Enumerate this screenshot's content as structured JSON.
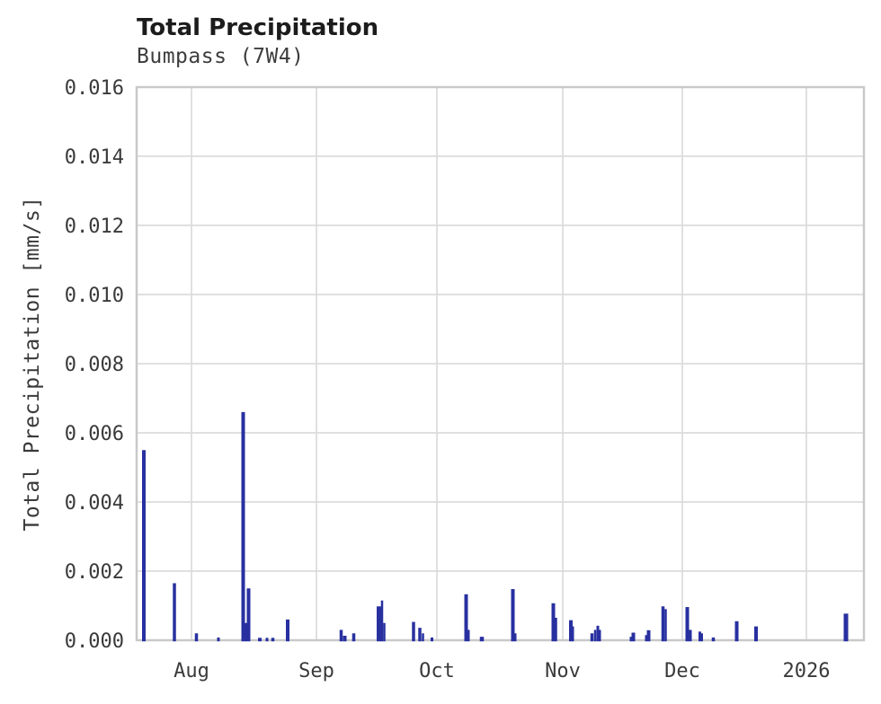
{
  "figure": {
    "title": "Total Precipitation",
    "subtitle": "Bumpass (7W4)"
  },
  "chart_data": {
    "type": "bar",
    "title": "Total Precipitation",
    "subtitle": "Bumpass (7W4)",
    "station": "Bumpass (7W4)",
    "xlabel": "",
    "ylabel": "Total Precipitation [mm/s]",
    "unit": "mm/s",
    "ylim": [
      0,
      0.016
    ],
    "y_tick_step": 0.002,
    "y_ticks": [
      "0.000",
      "0.002",
      "0.004",
      "0.006",
      "0.008",
      "0.010",
      "0.012",
      "0.014",
      "0.016"
    ],
    "x_ticks": [
      {
        "label": "Aug",
        "px": 213
      },
      {
        "label": "Sep",
        "px": 352
      },
      {
        "label": "Oct",
        "px": 486
      },
      {
        "label": "Nov",
        "px": 626
      },
      {
        "label": "Dec",
        "px": 759
      },
      {
        "label": "2026",
        "px": 897
      }
    ],
    "x_domain": [
      "2025-07-18",
      "2026-01-15"
    ],
    "grid": true,
    "legend": "none",
    "colors": {
      "bar": "#2830a0",
      "grid": "#dcdcdc",
      "spine": "#c9c9c9",
      "title": "#1c1c1c",
      "text": "#3a3a3a",
      "background": "#ffffff"
    },
    "points": [
      {
        "date": "Jul 20",
        "value": 0.0055,
        "px": 160,
        "w": 4
      },
      {
        "date": "Jul 27",
        "value": 0.00165,
        "px": 194,
        "w": 3.5
      },
      {
        "date": "Aug 2",
        "value": 0.0002,
        "px": 218.5,
        "w": 3.5
      },
      {
        "date": "Aug 7",
        "value": 8e-05,
        "px": 243,
        "w": 3
      },
      {
        "date": "Aug 13",
        "value": 0.0066,
        "px": 270.5,
        "w": 4
      },
      {
        "date": "Aug 14",
        "value": 0.0005,
        "px": 273.5,
        "w": 2.5
      },
      {
        "date": "Aug 15",
        "value": 0.0015,
        "px": 276.5,
        "w": 4
      },
      {
        "date": "Aug 18",
        "value": 7e-05,
        "px": 289,
        "w": 4
      },
      {
        "date": "Aug 19",
        "value": 7e-05,
        "px": 297,
        "w": 3
      },
      {
        "date": "Aug 21",
        "value": 7e-05,
        "px": 303.5,
        "w": 3.5
      },
      {
        "date": "Aug 25",
        "value": 0.0006,
        "px": 320,
        "w": 4
      },
      {
        "date": "Sep 7",
        "value": 0.0003,
        "px": 379.5,
        "w": 3.5
      },
      {
        "date": "Sep 8",
        "value": 0.00013,
        "px": 383.5,
        "w": 4
      },
      {
        "date": "Sep 10",
        "value": 0.0002,
        "px": 393.5,
        "w": 3.5
      },
      {
        "date": "Sep 16",
        "value": 0.00098,
        "px": 421.5,
        "w": 5
      },
      {
        "date": "Sep 17",
        "value": 0.00115,
        "px": 425,
        "w": 2.5
      },
      {
        "date": "Sep 17",
        "value": 0.0005,
        "px": 427.5,
        "w": 2.5
      },
      {
        "date": "Sep 25",
        "value": 0.00053,
        "px": 460,
        "w": 3.5
      },
      {
        "date": "Sep 26",
        "value": 0.00036,
        "px": 467,
        "w": 3.5
      },
      {
        "date": "Sep 27",
        "value": 0.0002,
        "px": 470.5,
        "w": 2.5
      },
      {
        "date": "Sep 29",
        "value": 8e-05,
        "px": 480.5,
        "w": 3
      },
      {
        "date": "Oct 8",
        "value": 0.00133,
        "px": 518.5,
        "w": 4
      },
      {
        "date": "Oct 9",
        "value": 0.0003,
        "px": 521.5,
        "w": 2
      },
      {
        "date": "Oct 12",
        "value": 0.0001,
        "px": 536,
        "w": 4.5
      },
      {
        "date": "Oct 19",
        "value": 0.00148,
        "px": 570.5,
        "w": 4
      },
      {
        "date": "Oct 20",
        "value": 0.0002,
        "px": 573.5,
        "w": 2
      },
      {
        "date": "Oct 29",
        "value": 0.00107,
        "px": 615.5,
        "w": 4
      },
      {
        "date": "Oct 30",
        "value": 0.00065,
        "px": 618.5,
        "w": 2.5
      },
      {
        "date": "Nov 3",
        "value": 0.00058,
        "px": 635,
        "w": 4
      },
      {
        "date": "Nov 4",
        "value": 0.0004,
        "px": 637.5,
        "w": 2
      },
      {
        "date": "Nov 8",
        "value": 0.0002,
        "px": 658.5,
        "w": 3.5
      },
      {
        "date": "Nov 9",
        "value": 0.0003,
        "px": 662,
        "w": 2.5
      },
      {
        "date": "Nov 9",
        "value": 0.00042,
        "px": 665,
        "w": 3
      },
      {
        "date": "Nov 10",
        "value": 0.0003,
        "px": 667.5,
        "w": 2
      },
      {
        "date": "Nov 17",
        "value": 0.0001,
        "px": 701.5,
        "w": 2
      },
      {
        "date": "Nov 18",
        "value": 0.00022,
        "px": 704.5,
        "w": 4
      },
      {
        "date": "Nov 21",
        "value": 0.00015,
        "px": 718.5,
        "w": 2
      },
      {
        "date": "Nov 22",
        "value": 0.00029,
        "px": 721.5,
        "w": 4
      },
      {
        "date": "Nov 25",
        "value": 0.00098,
        "px": 737.5,
        "w": 3.5
      },
      {
        "date": "Nov 26",
        "value": 0.0009,
        "px": 740.5,
        "w": 2.5
      },
      {
        "date": "Dec 2",
        "value": 0.00096,
        "px": 764.5,
        "w": 4
      },
      {
        "date": "Dec 3",
        "value": 0.0003,
        "px": 768,
        "w": 3
      },
      {
        "date": "Dec 5",
        "value": 0.00025,
        "px": 778.5,
        "w": 3
      },
      {
        "date": "Dec 5",
        "value": 0.0002,
        "px": 781,
        "w": 2
      },
      {
        "date": "Dec 8",
        "value": 8e-05,
        "px": 793.5,
        "w": 3.5
      },
      {
        "date": "Dec 14",
        "value": 0.00055,
        "px": 819.5,
        "w": 4
      },
      {
        "date": "Dec 19",
        "value": 0.0004,
        "px": 841,
        "w": 4
      },
      {
        "date": "Jan 10",
        "value": 0.00077,
        "px": 941,
        "w": 5
      }
    ]
  }
}
